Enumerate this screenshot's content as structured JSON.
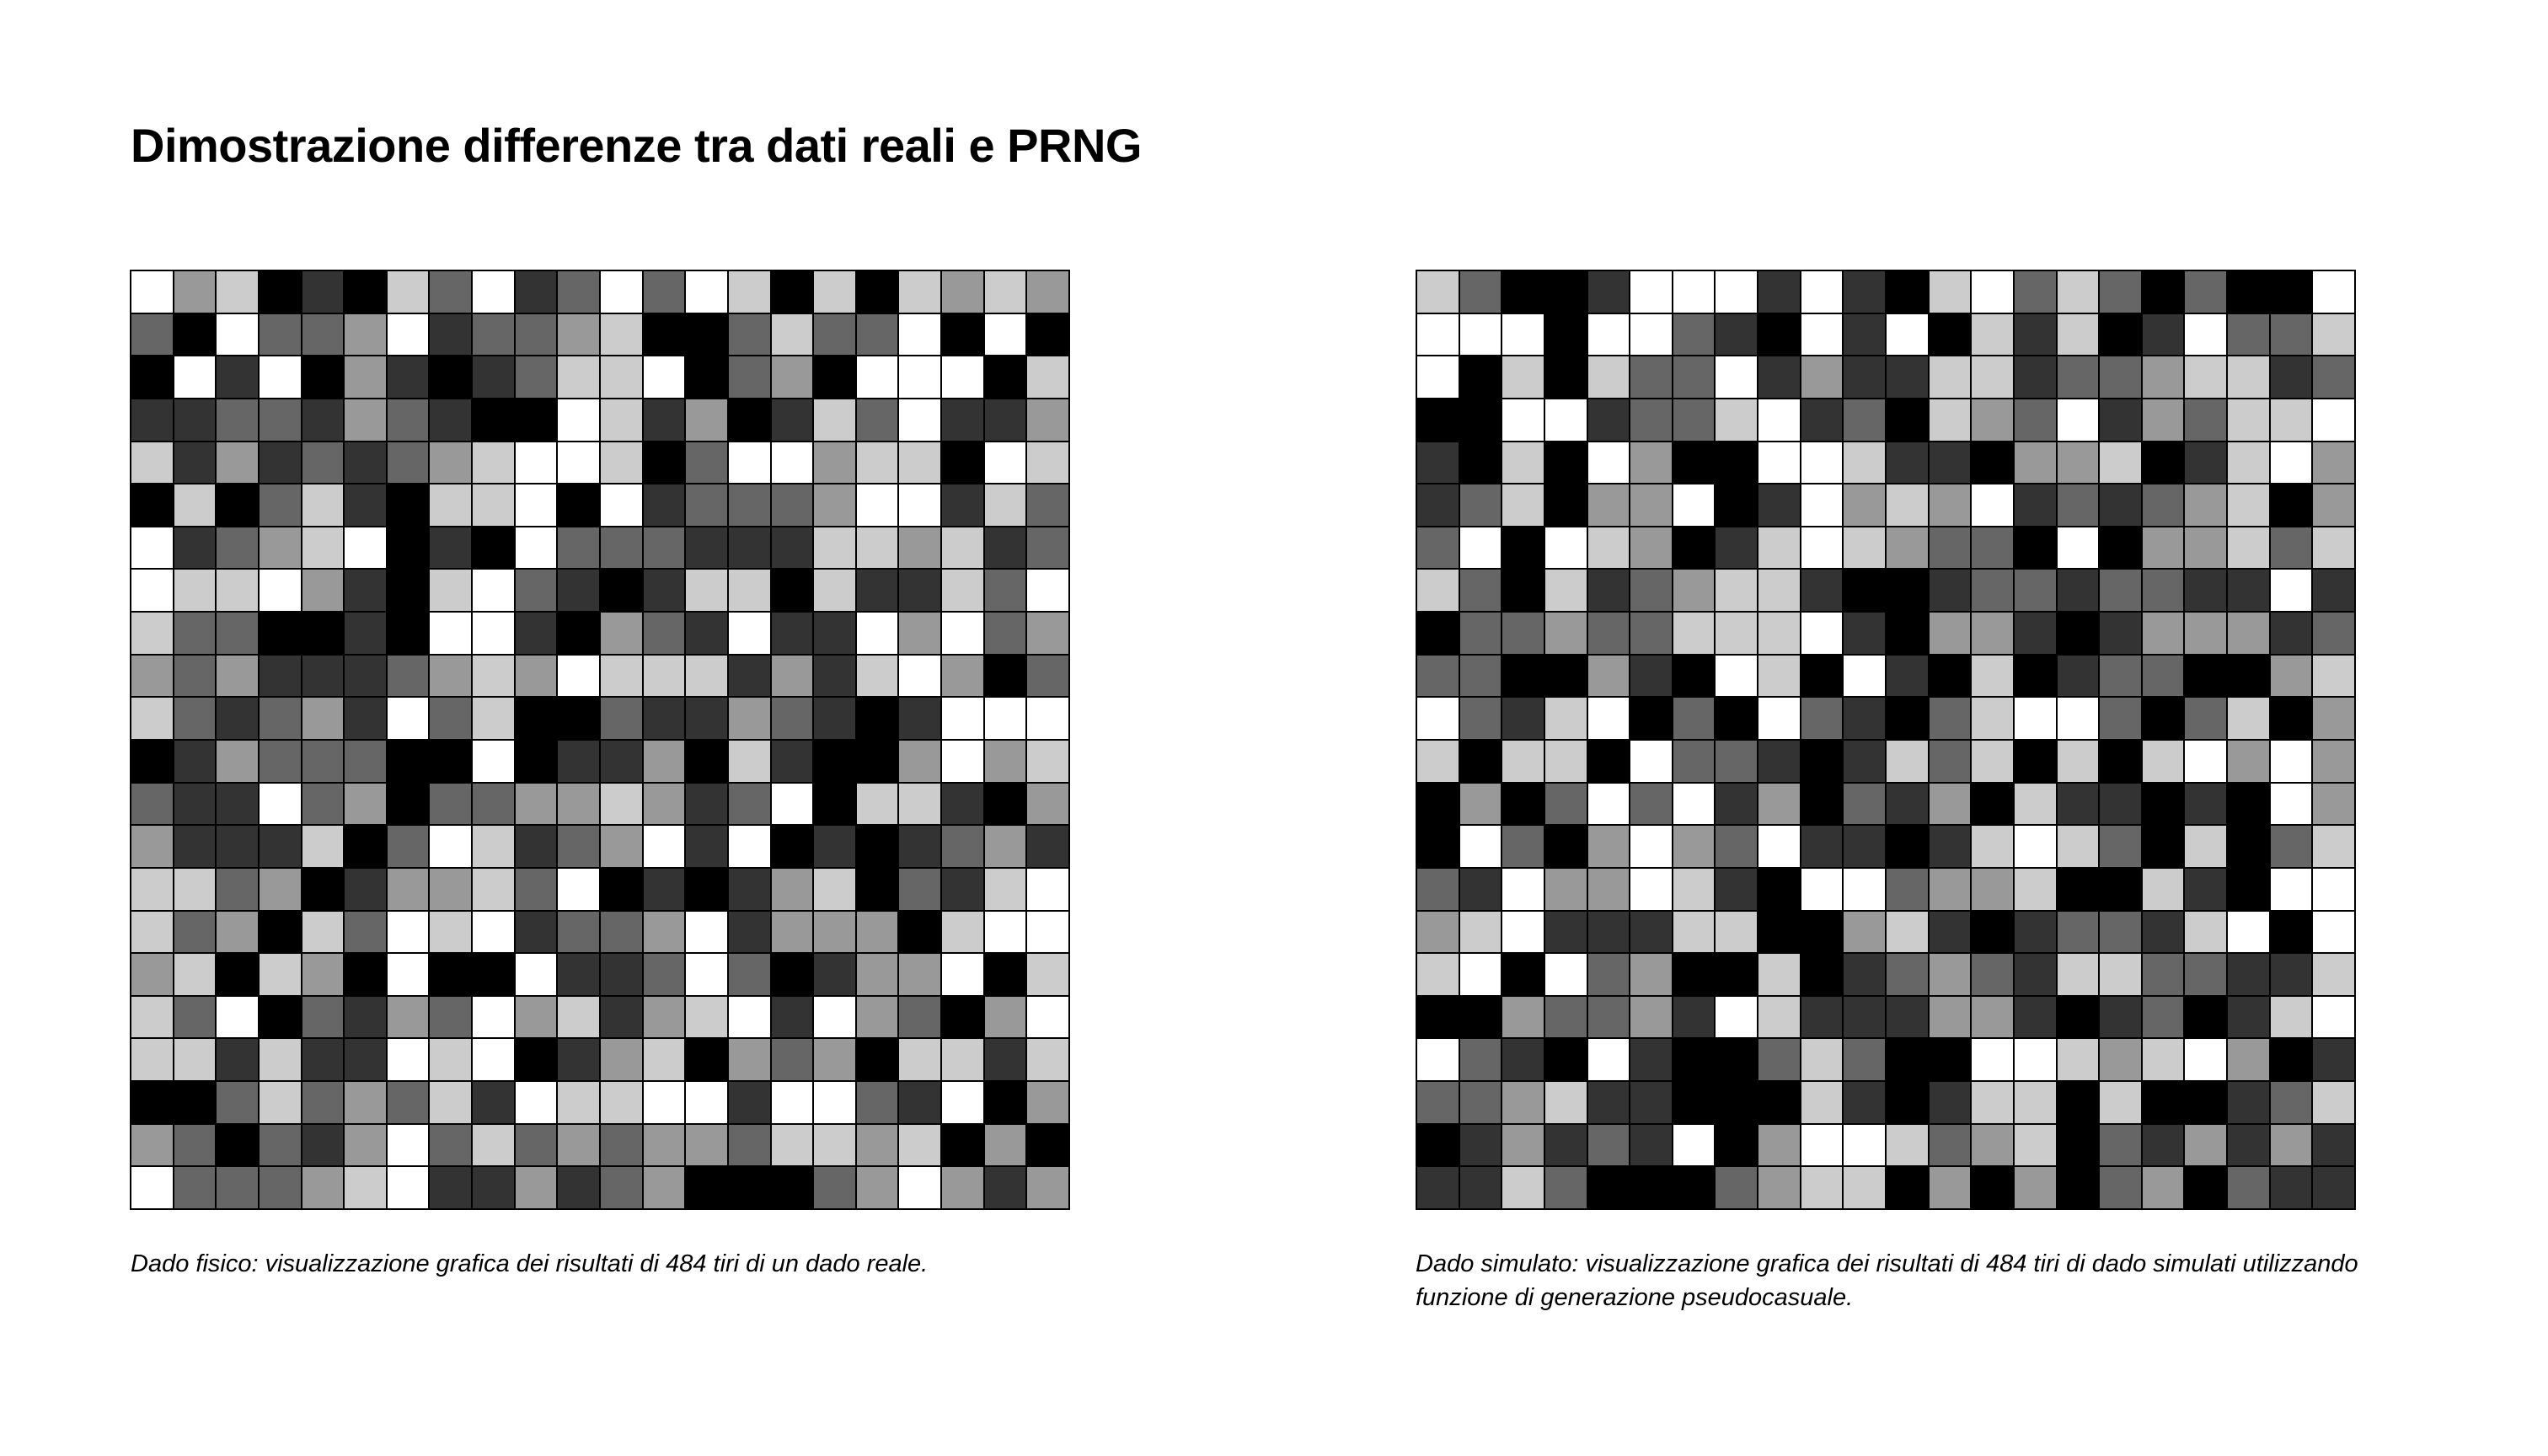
{
  "title": "Dimostrazione differenze tra dati reali e PRNG",
  "palette": [
    "#ffffff",
    "#cccccc",
    "#999999",
    "#666666",
    "#333333",
    "#000000"
  ],
  "left": {
    "caption": "Dado fisico: visualizzazione grafica dei risultati di 484 tiri di un dado reale.",
    "grid": [
      "1326562415414126262323",
      "4614431544326642441616",
      "6151635654221643611162",
      "5544534566125365241553",
      "2535454321126411322612",
      "6264256221615444311524",
      "1543216561444555223254",
      "1221356214565226255241",
      "2446656115634515513143",
      "3435554323122253521364",
      "2454351426645534565111",
      "6534446616553625663132",
      "4551436443323541622563",
      "3555264125431516565435",
      "2243653324165653264521",
      "2436241215443153336211",
      "3262361661554146533162",
      "2416453413253215134631",
      "2252551216532634362252",
      "6642434251221151145163",
      "3464531424343342232636",
      "1444321553543666431353"
    ]
  },
  "right": {
    "caption": "Dado simulato: visualizzazione grafica dei risultati di 484 tiri di dado simulati utilizzando funzione di generazione pseudocasuale.",
    "grid": [
      "2466511151562142464661",
      "1116114561516252651442",
      "1626244153552254432254",
      "6611544215462341534221",
      "5626136611255633265213",
      "5426331651323154543263",
      "4161236521234461633242",
      "2462543225665445445515",
      "6443442221563356533354",
      "4466356126156265446632",
      "1452164614564211464263",
      "2622614456524262621313",
      "6364141536453625565613",
      "6146313415565212462642",
      "4513312561143326625611",
      "3215552266325654452161",
      "2161436626543452244552",
      "6634435125553356546521",
      "1456156642466112321365",
      "4432556662565226266542",
      "6535451631124326453535",
      "5524666432263636436455"
    ]
  }
}
